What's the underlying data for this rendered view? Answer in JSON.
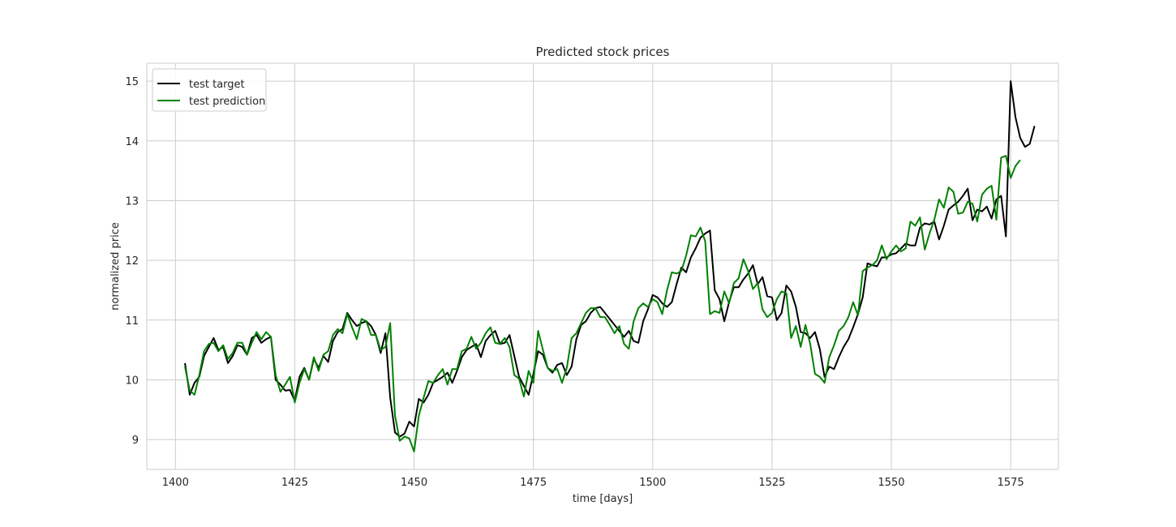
{
  "chart_data": {
    "type": "line",
    "title": "Predicted stock prices",
    "xlabel": "time [days]",
    "ylabel": "normalized price",
    "xlim": [
      1394,
      1585
    ],
    "ylim": [
      8.5,
      15.3
    ],
    "x_ticks": [
      1400,
      1425,
      1450,
      1475,
      1500,
      1525,
      1550,
      1575
    ],
    "y_ticks": [
      9,
      10,
      11,
      12,
      13,
      14,
      15
    ],
    "grid": true,
    "legend_position": "upper-left",
    "x_start": 1402,
    "series": [
      {
        "name": "test target",
        "color": "#000000",
        "values": [
          10.28,
          9.75,
          9.95,
          10.05,
          10.4,
          10.55,
          10.7,
          10.5,
          10.55,
          10.28,
          10.4,
          10.58,
          10.55,
          10.42,
          10.7,
          10.75,
          10.62,
          10.68,
          10.72,
          10.0,
          9.92,
          9.82,
          9.83,
          9.65,
          10.05,
          10.2,
          10.0,
          10.35,
          10.2,
          10.4,
          10.3,
          10.65,
          10.8,
          10.85,
          11.12,
          11.0,
          10.9,
          10.95,
          10.98,
          10.9,
          10.75,
          10.45,
          10.78,
          9.7,
          9.12,
          9.05,
          9.1,
          9.3,
          9.22,
          9.68,
          9.62,
          9.75,
          9.95,
          10.0,
          10.05,
          10.12,
          9.95,
          10.15,
          10.38,
          10.5,
          10.55,
          10.6,
          10.38,
          10.65,
          10.75,
          10.82,
          10.6,
          10.62,
          10.75,
          10.4,
          10.05,
          9.9,
          9.75,
          10.1,
          10.48,
          10.42,
          10.2,
          10.12,
          10.25,
          10.28,
          10.08,
          10.22,
          10.68,
          10.92,
          10.98,
          11.12,
          11.2,
          11.22,
          11.12,
          11.02,
          10.92,
          10.82,
          10.72,
          10.82,
          10.65,
          10.62,
          10.98,
          11.18,
          11.42,
          11.38,
          11.28,
          11.22,
          11.3,
          11.6,
          11.88,
          11.8,
          12.05,
          12.2,
          12.38,
          12.45,
          12.5,
          11.5,
          11.35,
          10.98,
          11.3,
          11.55,
          11.55,
          11.68,
          11.78,
          11.92,
          11.6,
          11.72,
          11.4,
          11.38,
          11.0,
          11.12,
          11.58,
          11.48,
          11.22,
          10.8,
          10.78,
          10.7,
          10.8,
          10.52,
          10.05,
          10.22,
          10.18,
          10.38,
          10.55,
          10.68,
          10.88,
          11.1,
          11.38,
          11.95,
          11.92,
          11.9,
          12.05,
          12.05,
          12.1,
          12.12,
          12.2,
          12.28,
          12.25,
          12.25,
          12.55,
          12.62,
          12.6,
          12.65,
          12.35,
          12.58,
          12.85,
          12.92,
          12.98,
          13.08,
          13.2,
          12.67,
          12.85,
          12.82,
          12.9,
          12.7,
          13.02,
          13.08,
          12.4,
          15.0,
          14.4,
          14.05,
          13.9,
          13.95,
          14.25
        ]
      },
      {
        "name": "test prediction",
        "color": "#008000",
        "values": [
          10.22,
          9.82,
          9.75,
          10.08,
          10.48,
          10.6,
          10.62,
          10.48,
          10.58,
          10.35,
          10.45,
          10.62,
          10.62,
          10.42,
          10.62,
          10.8,
          10.68,
          10.8,
          10.72,
          10.08,
          9.8,
          9.92,
          10.05,
          9.62,
          9.95,
          10.18,
          10.0,
          10.38,
          10.15,
          10.42,
          10.48,
          10.75,
          10.85,
          10.78,
          11.1,
          10.88,
          10.68,
          11.02,
          10.98,
          10.75,
          10.75,
          10.5,
          10.55,
          10.95,
          9.4,
          8.98,
          9.05,
          9.02,
          8.8,
          9.4,
          9.7,
          9.98,
          9.95,
          10.08,
          10.18,
          9.92,
          10.18,
          10.18,
          10.48,
          10.52,
          10.72,
          10.52,
          10.62,
          10.78,
          10.88,
          10.62,
          10.6,
          10.7,
          10.55,
          10.08,
          10.02,
          9.72,
          10.15,
          9.95,
          10.82,
          10.5,
          10.2,
          10.15,
          10.18,
          9.95,
          10.2,
          10.7,
          10.78,
          10.95,
          11.12,
          11.2,
          11.2,
          11.05,
          11.05,
          10.92,
          10.78,
          10.9,
          10.6,
          10.52,
          10.98,
          11.2,
          11.28,
          11.22,
          11.35,
          11.3,
          11.1,
          11.5,
          11.8,
          11.78,
          11.82,
          12.08,
          12.42,
          12.4,
          12.55,
          12.32,
          11.1,
          11.15,
          11.12,
          11.48,
          11.28,
          11.62,
          11.7,
          12.02,
          11.82,
          11.52,
          11.62,
          11.18,
          11.05,
          11.12,
          11.35,
          11.48,
          11.45,
          10.7,
          10.9,
          10.55,
          10.92,
          10.6,
          10.1,
          10.05,
          9.95,
          10.38,
          10.58,
          10.82,
          10.9,
          11.05,
          11.3,
          11.08,
          11.82,
          11.88,
          11.92,
          12.0,
          12.25,
          12.02,
          12.15,
          12.25,
          12.15,
          12.2,
          12.65,
          12.58,
          12.72,
          12.18,
          12.45,
          12.68,
          13.02,
          12.88,
          13.22,
          13.15,
          12.78,
          12.8,
          12.98,
          12.95,
          12.65,
          13.1,
          13.2,
          13.25,
          12.68,
          13.72,
          13.75,
          13.38,
          13.58,
          13.68
        ]
      }
    ]
  }
}
